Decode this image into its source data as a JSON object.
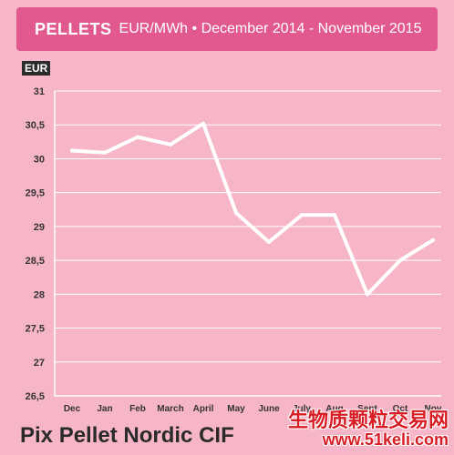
{
  "header": {
    "title": "PELLETS",
    "subtitle": "EUR/MWh • December 2014 - November 2015"
  },
  "unit_label": "EUR",
  "footer_title": "Pix Pellet Nordic CIF",
  "watermark": {
    "text": "生物质颗粒交易网",
    "url": "www.51keli.com"
  },
  "colors": {
    "background": "#f7b6c8",
    "header": "#e2598f",
    "line": "#ffffff",
    "grid": "#ffffff"
  },
  "chart_data": {
    "type": "line",
    "categories": [
      "Dec",
      "Jan",
      "Feb",
      "March",
      "April",
      "May",
      "June",
      "July",
      "Aug",
      "Sept",
      "Oct",
      "Nov"
    ],
    "series": [
      {
        "values": [
          30.12,
          30.09,
          30.32,
          30.21,
          30.52,
          29.2,
          28.77,
          29.17,
          29.17,
          28.0,
          28.5,
          28.8
        ]
      }
    ],
    "yticks": [
      "31",
      "30,5",
      "30",
      "29,5",
      "29",
      "28,5",
      "28",
      "27,5",
      "27",
      "26,5"
    ],
    "ylim": [
      26.5,
      31
    ],
    "grid": true,
    "title": "",
    "xlabel": "",
    "ylabel": "EUR"
  }
}
